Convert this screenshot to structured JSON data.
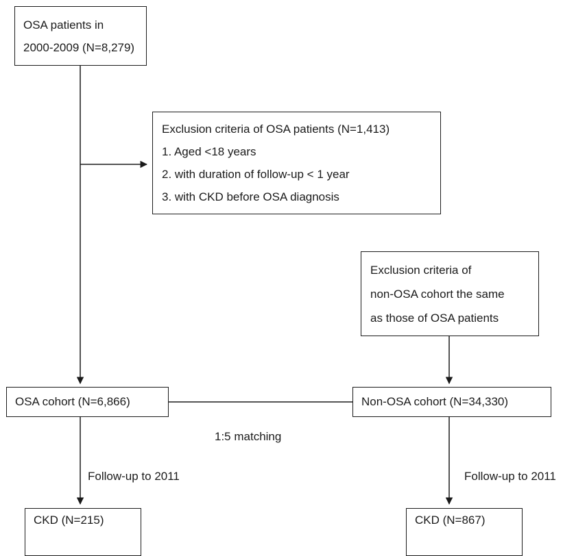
{
  "start": {
    "lines": [
      "OSA patients in",
      "2000-2009 (N=8,279)"
    ]
  },
  "exclusion_osa": {
    "title": "Exclusion criteria of OSA patients (N=1,413)",
    "items": [
      "1.  Aged <18 years",
      "2.  with duration of follow-up < 1 year",
      "3.  with CKD before OSA diagnosis"
    ]
  },
  "exclusion_non_osa": {
    "lines": [
      "Exclusion criteria of",
      "non-OSA cohort the same",
      "as those of OSA patients"
    ]
  },
  "osa_cohort": "OSA cohort (N=6,866)",
  "non_osa_cohort": "Non-OSA cohort (N=34,330)",
  "matching": "1:5 matching",
  "follow_up_left": "Follow-up to 2011",
  "follow_up_right": "Follow-up to 2011",
  "ckd_left": "CKD (N=215)",
  "ckd_right": "CKD (N=867)"
}
